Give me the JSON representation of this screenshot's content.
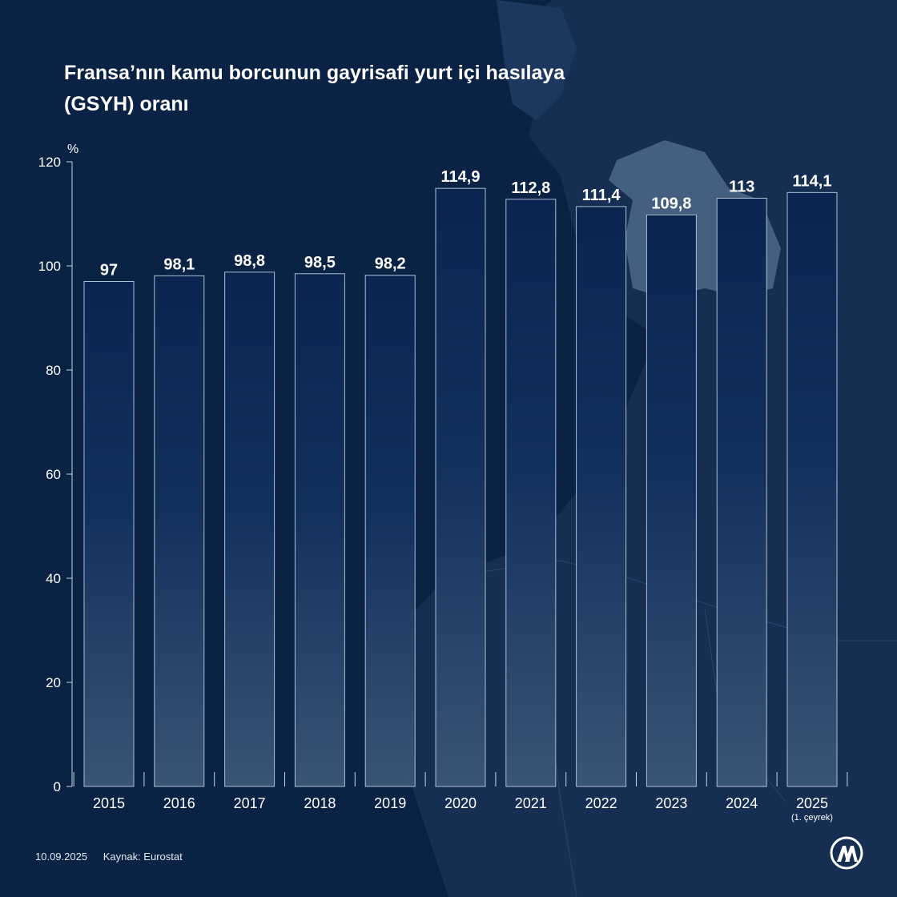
{
  "title": "Fransa’nın kamu borcunun gayrisafi yurt içi hasılaya (GSYH) oranı",
  "footer": {
    "date": "10.09.2025",
    "source": "Kaynak: Eurostat"
  },
  "logo": {
    "icon": "aa-logo-icon"
  },
  "colors": {
    "background": "#0a2244",
    "bar_top": "#0b2550",
    "bar_bottom": "#3a5476",
    "bar_outline": "#aebdd4",
    "axis": "#c9d3e2",
    "map_land": "#1a3558",
    "map_highlight": "#4a6585"
  },
  "chart_data": {
    "type": "bar",
    "ylabel": "%",
    "ylim": [
      0,
      120
    ],
    "yticks": [
      0,
      20,
      40,
      60,
      80,
      100,
      120
    ],
    "categories": [
      "2015",
      "2016",
      "2017",
      "2018",
      "2019",
      "2020",
      "2021",
      "2022",
      "2023",
      "2024",
      "2025"
    ],
    "category_notes": [
      "",
      "",
      "",
      "",
      "",
      "",
      "",
      "",
      "",
      "",
      "(1. çeyrek)"
    ],
    "values": [
      97,
      98.1,
      98.8,
      98.5,
      98.2,
      114.9,
      112.8,
      111.4,
      109.8,
      113,
      114.1
    ],
    "value_labels": [
      "97",
      "98,1",
      "98,8",
      "98,5",
      "98,2",
      "114,9",
      "112,8",
      "111,4",
      "109,8",
      "113",
      "114,1"
    ],
    "grid": false,
    "legend": "none"
  }
}
